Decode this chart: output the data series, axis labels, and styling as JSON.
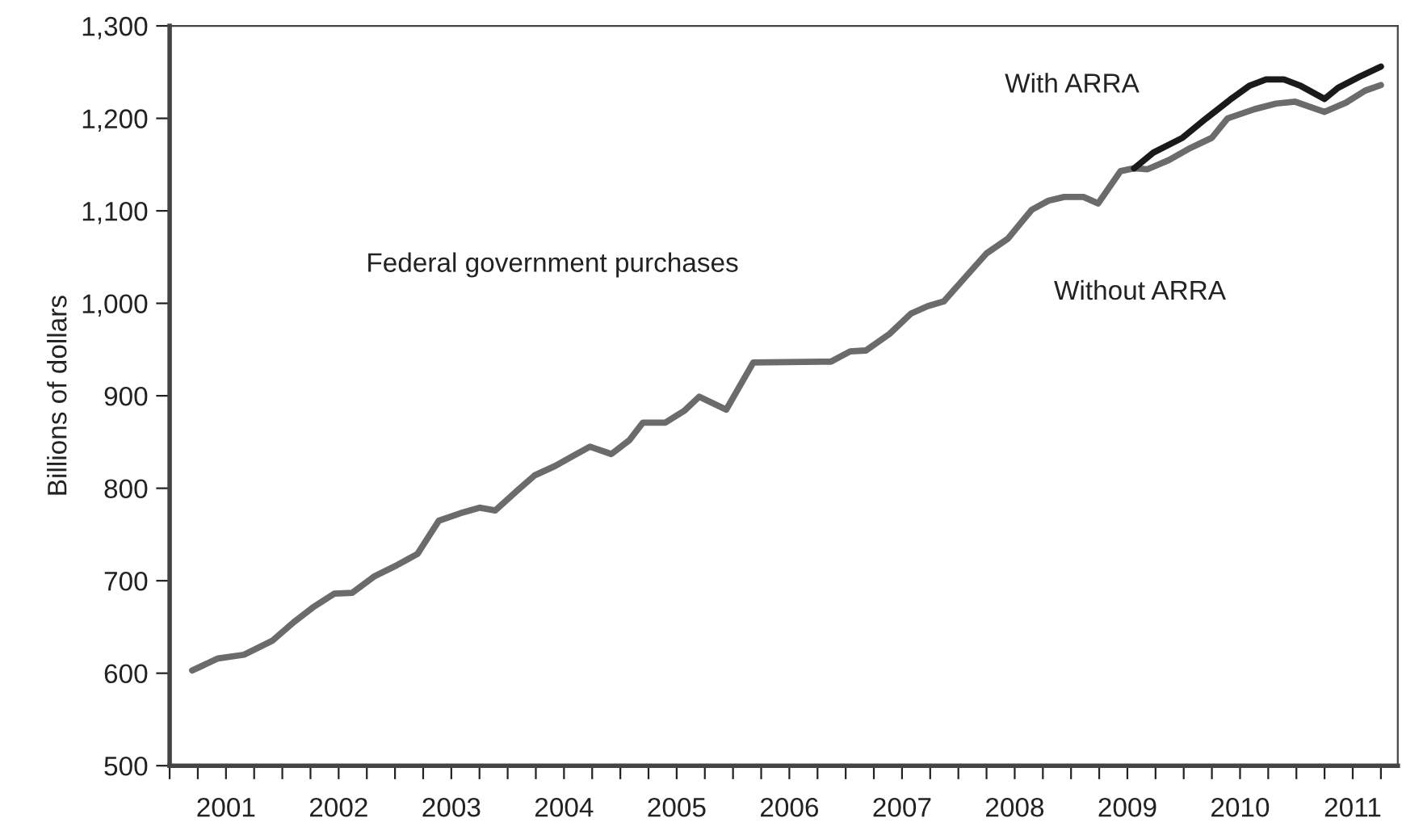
{
  "chart_data": {
    "type": "line",
    "ylabel": "Billions of dollars",
    "annotations": [
      "Federal government purchases"
    ],
    "series": [
      {
        "name": "Without ARRA",
        "color": "#6b6b6b",
        "x": [
          2001.2,
          2001.43,
          2001.66,
          2001.91,
          2002.1,
          2002.27,
          2002.46,
          2002.62,
          2002.82,
          2003.02,
          2003.2,
          2003.39,
          2003.58,
          2003.75,
          2003.89,
          2004.08,
          2004.24,
          2004.42,
          2004.58,
          2004.73,
          2004.92,
          2005.08,
          2005.2,
          2005.4,
          2005.57,
          2005.7,
          2005.94,
          2006.18,
          2006.87,
          2007.04,
          2007.18,
          2007.39,
          2007.58,
          2007.73,
          2007.87,
          2008.06,
          2008.25,
          2008.44,
          2008.65,
          2008.8,
          2008.94,
          2009.11,
          2009.24,
          2009.44,
          2009.56,
          2009.68,
          2009.87,
          2010.06,
          2010.25,
          2010.39,
          2010.63,
          2010.82,
          2010.99,
          2011.25,
          2011.44,
          2011.61,
          2011.75
        ],
        "values": [
          603,
          616,
          620,
          635,
          655,
          671,
          686,
          687,
          705,
          717,
          729,
          765,
          773,
          779,
          776,
          797,
          814,
          824,
          835,
          845,
          837,
          852,
          871,
          871,
          884,
          899,
          885,
          936,
          937,
          948,
          949,
          967,
          989,
          997,
          1002,
          1028,
          1054,
          1070,
          1101,
          1111,
          1115,
          1115,
          1108,
          1143,
          1146,
          1145,
          1155,
          1168,
          1179,
          1200,
          1210,
          1216,
          1218,
          1207,
          1217,
          1230,
          1236
        ]
      },
      {
        "name": "With ARRA",
        "color": "#1a1a1a",
        "x": [
          2009.56,
          2009.73,
          2009.99,
          2010.2,
          2010.42,
          2010.58,
          2010.73,
          2010.89,
          2011.04,
          2011.25,
          2011.37,
          2011.56,
          2011.75
        ],
        "values": [
          1146,
          1163,
          1179,
          1200,
          1221,
          1235,
          1242,
          1242,
          1235,
          1221,
          1233,
          1245,
          1256
        ]
      }
    ],
    "xlim": [
      2001,
      2011.9
    ],
    "xticks": [
      {
        "value": 2001,
        "label": null
      },
      {
        "value": 2001.25,
        "label": null
      },
      {
        "value": 2001.5,
        "label": "2001"
      },
      {
        "value": 2001.75,
        "label": null
      },
      {
        "value": 2002,
        "label": null
      },
      {
        "value": 2002.25,
        "label": null
      },
      {
        "value": 2002.5,
        "label": "2002"
      },
      {
        "value": 2002.75,
        "label": null
      },
      {
        "value": 2003,
        "label": null
      },
      {
        "value": 2003.25,
        "label": null
      },
      {
        "value": 2003.5,
        "label": "2003"
      },
      {
        "value": 2003.75,
        "label": null
      },
      {
        "value": 2004,
        "label": null
      },
      {
        "value": 2004.25,
        "label": null
      },
      {
        "value": 2004.5,
        "label": "2004"
      },
      {
        "value": 2004.75,
        "label": null
      },
      {
        "value": 2005,
        "label": null
      },
      {
        "value": 2005.25,
        "label": null
      },
      {
        "value": 2005.5,
        "label": "2005"
      },
      {
        "value": 2005.75,
        "label": null
      },
      {
        "value": 2006,
        "label": null
      },
      {
        "value": 2006.25,
        "label": null
      },
      {
        "value": 2006.5,
        "label": "2006"
      },
      {
        "value": 2006.75,
        "label": null
      },
      {
        "value": 2007,
        "label": null
      },
      {
        "value": 2007.25,
        "label": null
      },
      {
        "value": 2007.5,
        "label": "2007"
      },
      {
        "value": 2007.75,
        "label": null
      },
      {
        "value": 2008,
        "label": null
      },
      {
        "value": 2008.25,
        "label": null
      },
      {
        "value": 2008.5,
        "label": "2008"
      },
      {
        "value": 2008.75,
        "label": null
      },
      {
        "value": 2009,
        "label": null
      },
      {
        "value": 2009.25,
        "label": null
      },
      {
        "value": 2009.5,
        "label": "2009"
      },
      {
        "value": 2009.75,
        "label": null
      },
      {
        "value": 2010,
        "label": null
      },
      {
        "value": 2010.25,
        "label": null
      },
      {
        "value": 2010.5,
        "label": "2010"
      },
      {
        "value": 2010.75,
        "label": null
      },
      {
        "value": 2011,
        "label": null
      },
      {
        "value": 2011.25,
        "label": null
      },
      {
        "value": 2011.5,
        "label": "2011"
      },
      {
        "value": 2011.75,
        "label": null
      }
    ],
    "ylim": [
      500,
      1300
    ],
    "yticks": [
      500,
      600,
      700,
      800,
      900,
      {
        "value": 1000,
        "label": "1,000"
      },
      {
        "value": 1100,
        "label": "1,100"
      },
      {
        "value": 1200,
        "label": "1,200"
      },
      {
        "value": 1300,
        "label": "1,300"
      }
    ],
    "grid": false,
    "legend": false,
    "marker": "none",
    "line_style": "solid"
  }
}
